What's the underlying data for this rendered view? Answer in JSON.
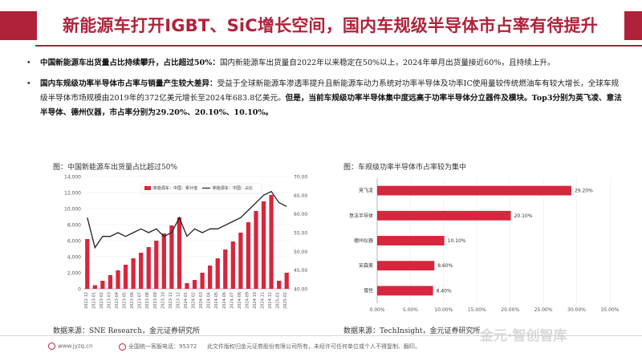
{
  "header": {
    "title": "新能源车打开IGBT、SiC增长空间，国内车规级半导体市占率有待提升"
  },
  "bullets": [
    {
      "bold": "中国新能源车出货量占比持续攀升，占比超过50%：",
      "text": "国内新能源车出货量自2022年以来稳定在50%以上，2024年单月出货量接近60%，且持续上升。"
    },
    {
      "bold": "国内车规级功率半导体市占率与销量产生较大差异：",
      "text": "受益于全球新能源车渗透率提升且新能源车动力系统对功率半导体及功率IC使用量较传统燃油车有较大增长，全球车规级半导体市场规模由2019年的372亿美元增长至2024年683.8亿美元。",
      "bold2": "但是，当前车规级功率半导体集中度远高于功率半导体分立器件及模块。Top3分别为英飞凌、意法半导体、德州仪器，市占率分别为29.20%、20.10%、10.10%。"
    }
  ],
  "left_panel": {
    "title": "图：中国新能源车出货量占比超过50%",
    "source": "数据来源：SNE Research，金元证券研究所"
  },
  "right_panel": {
    "title": "图：车规级功率半导体市占率较为集中",
    "source": "数据来源：TechInsight，金元证券研究所"
  },
  "footer": {
    "site": "www.jyzq.cn",
    "hotline": "全国统一客服电话：95372",
    "notice": "此文件版权归金元证券股份有限公司所有，未经许可任何单位或个人不得复制、翻印。"
  },
  "watermark": {
    "text": "金元·智创智库"
  },
  "colors": {
    "brand": "#b0223a",
    "bar": "#d7263d",
    "line": "#222222"
  },
  "chart_data": [
    {
      "type": "bar+line",
      "title": "",
      "legend": [
        "新能源车：中国：累计值",
        "新能源车：中国：占比"
      ],
      "legend_position": "top-center",
      "categories": [
        "2022-12",
        "2023-01",
        "2023-02",
        "2023-03",
        "2023-04",
        "2023-05",
        "2023-06",
        "2023-07",
        "2023-08",
        "2023-09",
        "2023-10",
        "2023-11",
        "2023-12",
        "2024-01",
        "2024-02",
        "2024-03",
        "2024-04",
        "2024-05",
        "2024-06",
        "2024-07",
        "2024-08",
        "2024-09",
        "2024-10",
        "2024-11",
        "2024-12",
        "2025-01",
        "2025-02"
      ],
      "series": [
        {
          "name": "新能源车：中国：累计值",
          "axis": "left",
          "type": "bar",
          "values": [
            6200,
            450,
            1000,
            1700,
            2300,
            3000,
            3800,
            4500,
            5200,
            6000,
            6900,
            7900,
            8900,
            700,
            1100,
            2000,
            2900,
            3800,
            4900,
            5900,
            7000,
            8300,
            9700,
            10900,
            11700,
            1000,
            2000
          ]
        },
        {
          "name": "新能源车：中国：占比",
          "axis": "right",
          "type": "line",
          "values": [
            59,
            51,
            54,
            54,
            55,
            54,
            55,
            56,
            55,
            56,
            54,
            55,
            59,
            54,
            56,
            55,
            56,
            56,
            57,
            58,
            59,
            61,
            63,
            65,
            66,
            63,
            62
          ]
        }
      ],
      "ylim_left": [
        0,
        14000
      ],
      "yticks_left": [
        "0",
        "2,000",
        "4,000",
        "6,000",
        "8,000",
        "10,000",
        "12,000",
        "14,000"
      ],
      "ylim_right": [
        40,
        70
      ],
      "yticks_right": [
        "40.00",
        "45.00",
        "50.00",
        "55.00",
        "60.00",
        "65.00",
        "70.00"
      ]
    },
    {
      "type": "bar",
      "orientation": "horizontal",
      "title": "",
      "categories": [
        "英飞凌",
        "意法半导体",
        "德州仪器",
        "安森美",
        "博世"
      ],
      "values": [
        29.2,
        20.1,
        10.1,
        8.6,
        8.4
      ],
      "value_labels": [
        "29.20%",
        "20.10%",
        "10.10%",
        "8.60%",
        "8.40%"
      ],
      "xlim": [
        0,
        35
      ],
      "xticks": [
        "0.00%",
        "5.00%",
        "10.00%",
        "15.00%",
        "20.00%",
        "25.00%",
        "30.00%",
        "35.00%"
      ]
    }
  ]
}
